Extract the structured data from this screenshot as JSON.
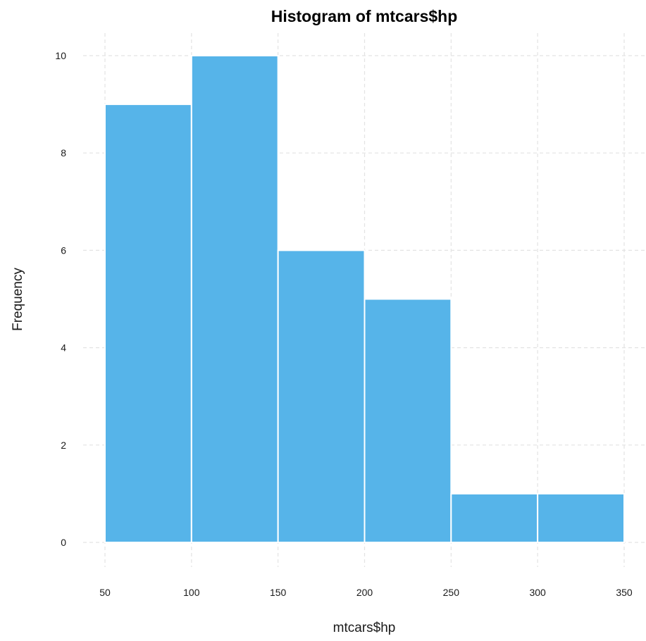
{
  "chart_data": {
    "type": "bar",
    "title": "Histogram of mtcars$hp",
    "xlabel": "mtcars$hp",
    "ylabel": "Frequency",
    "bins": [
      {
        "start": 50,
        "end": 100,
        "count": 9
      },
      {
        "start": 100,
        "end": 150,
        "count": 10
      },
      {
        "start": 150,
        "end": 200,
        "count": 6
      },
      {
        "start": 200,
        "end": 250,
        "count": 5
      },
      {
        "start": 250,
        "end": 300,
        "count": 1
      },
      {
        "start": 300,
        "end": 350,
        "count": 1
      }
    ],
    "xlim": [
      50,
      350
    ],
    "ylim": [
      0,
      10
    ],
    "x_ticks": [
      50,
      100,
      150,
      200,
      250,
      300,
      350
    ],
    "y_ticks": [
      0,
      2,
      4,
      6,
      8,
      10
    ],
    "grid": true,
    "bar_color": "#56B4E9",
    "legend": "none"
  }
}
